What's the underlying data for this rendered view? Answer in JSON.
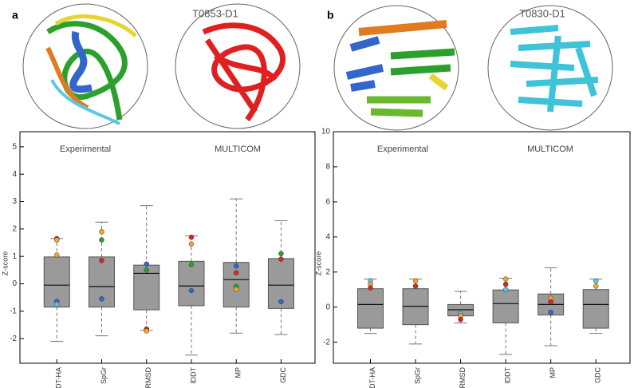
{
  "chart_data": [
    {
      "type": "box",
      "panel_label": "a",
      "title": "T0853-D1",
      "label_left": "Experimental",
      "label_right": "MULTICOM",
      "ylabel": "Z-score",
      "categories": [
        "GDT-HA",
        "SpGr",
        "RMSD",
        "lDDT",
        "MP",
        "GDC"
      ],
      "box_color": "#9a9a9a",
      "ylim": [
        -2.9,
        5.55
      ],
      "yticks": [
        -2,
        -1,
        0,
        1,
        2,
        3,
        4,
        5
      ],
      "boxes": [
        {
          "low": -2.1,
          "q1": -0.85,
          "median": -0.05,
          "q3": 0.98,
          "high": 1.65,
          "points": [
            {
              "value": 1.65,
              "color": "#d62728"
            },
            {
              "value": 1.6,
              "color": "#f5a623"
            },
            {
              "value": 1.05,
              "color": "#f5a623"
            },
            {
              "value": -0.65,
              "color": "#3366cc"
            },
            {
              "value": -0.75,
              "color": "#5bc8e0"
            }
          ]
        },
        {
          "low": -1.9,
          "q1": -0.85,
          "median": -0.1,
          "q3": 0.98,
          "high": 2.25,
          "points": [
            {
              "value": 1.9,
              "color": "#f5a623"
            },
            {
              "value": 1.6,
              "color": "#2ca02c"
            },
            {
              "value": 0.85,
              "color": "#d62728"
            },
            {
              "value": -0.55,
              "color": "#3366cc"
            }
          ]
        },
        {
          "low": -1.7,
          "q1": -0.95,
          "median": 0.38,
          "q3": 0.68,
          "high": 2.85,
          "points": [
            {
              "value": 0.72,
              "color": "#3366cc"
            },
            {
              "value": 0.5,
              "color": "#2ca02c"
            },
            {
              "value": -1.65,
              "color": "#d62728"
            },
            {
              "value": -1.72,
              "color": "#f5a623"
            }
          ]
        },
        {
          "low": -2.6,
          "q1": -0.8,
          "median": -0.08,
          "q3": 0.82,
          "high": 1.75,
          "points": [
            {
              "value": 1.7,
              "color": "#d62728"
            },
            {
              "value": 1.45,
              "color": "#f5a623"
            },
            {
              "value": 0.7,
              "color": "#2ca02c"
            },
            {
              "value": -0.25,
              "color": "#3366cc"
            }
          ]
        },
        {
          "low": -1.8,
          "q1": -0.85,
          "median": 0.15,
          "q3": 0.78,
          "high": 3.1,
          "points": [
            {
              "value": 0.65,
              "color": "#3366cc"
            },
            {
              "value": 0.4,
              "color": "#d62728"
            },
            {
              "value": -0.1,
              "color": "#2ca02c"
            },
            {
              "value": -0.2,
              "color": "#f5a623"
            }
          ]
        },
        {
          "low": -1.85,
          "q1": -0.9,
          "median": -0.05,
          "q3": 0.92,
          "high": 2.3,
          "points": [
            {
              "value": 1.1,
              "color": "#2ca02c"
            },
            {
              "value": 0.9,
              "color": "#d62728"
            },
            {
              "value": -0.65,
              "color": "#3366cc"
            }
          ]
        }
      ]
    },
    {
      "type": "box",
      "panel_label": "b",
      "title": "T0830-D1",
      "label_left": "Experimental",
      "label_right": "MULTICOM",
      "ylabel": "Z-score",
      "categories": [
        "GDT-HA",
        "SpGr",
        "RMSD",
        "lDDT",
        "MP",
        "GDC"
      ],
      "box_color": "#9a9a9a",
      "ylim": [
        -3.2,
        10
      ],
      "yticks": [
        -2,
        0,
        2,
        4,
        6,
        8,
        10
      ],
      "boxes": [
        {
          "low": -1.5,
          "q1": -1.2,
          "median": 0.15,
          "q3": 1.05,
          "high": 1.6,
          "points": [
            {
              "value": 1.5,
              "color": "#5bc8e0"
            },
            {
              "value": 1.3,
              "color": "#f5a623"
            },
            {
              "value": 1.1,
              "color": "#d62728"
            }
          ]
        },
        {
          "low": -2.1,
          "q1": -1.0,
          "median": 0.05,
          "q3": 1.05,
          "high": 1.6,
          "points": [
            {
              "value": 1.5,
              "color": "#f5a623"
            },
            {
              "value": 1.2,
              "color": "#d62728"
            }
          ]
        },
        {
          "low": -0.9,
          "q1": -0.5,
          "median": -0.15,
          "q3": 0.15,
          "high": 0.9,
          "points": [
            {
              "value": -0.4,
              "color": "#5bc8e0"
            },
            {
              "value": -0.5,
              "color": "#f5a623"
            },
            {
              "value": -0.7,
              "color": "#d62728"
            }
          ]
        },
        {
          "low": -2.7,
          "q1": -0.9,
          "median": 0.2,
          "q3": 0.98,
          "high": 1.65,
          "points": [
            {
              "value": 1.6,
              "color": "#f5a623"
            },
            {
              "value": 1.3,
              "color": "#d62728"
            },
            {
              "value": 1.0,
              "color": "#5bc8e0"
            }
          ]
        },
        {
          "low": -2.2,
          "q1": -0.45,
          "median": 0.15,
          "q3": 0.75,
          "high": 2.25,
          "points": [
            {
              "value": 0.5,
              "color": "#f5a623"
            },
            {
              "value": 0.3,
              "color": "#d62728"
            },
            {
              "value": -0.3,
              "color": "#3366cc"
            }
          ]
        },
        {
          "low": -1.5,
          "q1": -1.2,
          "median": 0.15,
          "q3": 1.0,
          "high": 1.6,
          "points": [
            {
              "value": 1.5,
              "color": "#5bc8e0"
            },
            {
              "value": 1.2,
              "color": "#f5a623"
            }
          ]
        }
      ]
    }
  ]
}
